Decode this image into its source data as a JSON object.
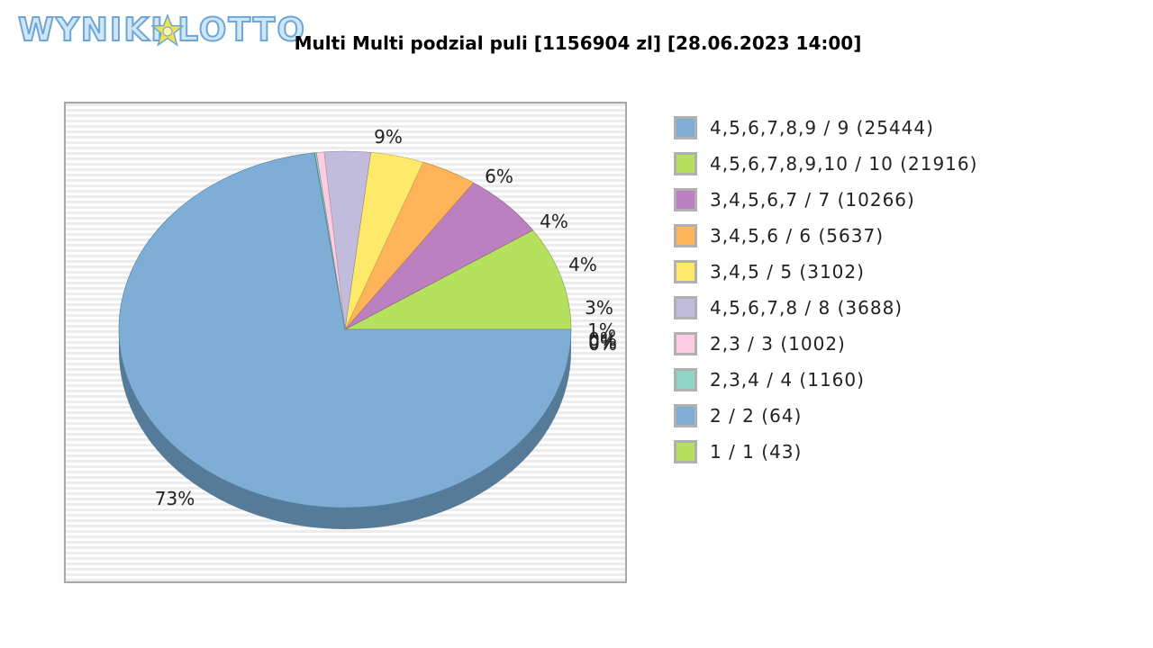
{
  "logo": {
    "text": "WYNIKI LOTTO",
    "colors": {
      "fill": "#cfe6f7",
      "outline": "#6ea6d6",
      "star": "#f3e24a"
    }
  },
  "chart_data": {
    "type": "pie",
    "title": "Multi Multi podzial puli [1156904 zl] [28.06.2023 14:00]",
    "slices": [
      {
        "label": "4,5,6,7,8,9 / 9 (25444)",
        "value": 25444,
        "percent_label": "73%",
        "color": "#7eaed5",
        "shade": "#557b99"
      },
      {
        "label": "4,5,6,7,8,9,10 / 10 (21916)",
        "value": 21916,
        "percent_label": "9%",
        "color": "#b5e15e",
        "shade": "#7fa040"
      },
      {
        "label": "3,4,5,6,7 / 7 (10266)",
        "value": 10266,
        "percent_label": "6%",
        "color": "#bc7fbf",
        "shade": "#855a87"
      },
      {
        "label": "3,4,5,6 / 6 (5637)",
        "value": 5637,
        "percent_label": "4%",
        "color": "#ffb45a",
        "shade": "#b88040"
      },
      {
        "label": "3,4,5 / 5 (3102)",
        "value": 3102,
        "percent_label": "4%",
        "color": "#ffe96a",
        "shade": "#b8a84b"
      },
      {
        "label": "4,5,6,7,8 / 8 (3688)",
        "value": 3688,
        "percent_label": "3%",
        "color": "#c1bbdc",
        "shade": "#8a859e"
      },
      {
        "label": "2,3 / 3 (1002)",
        "value": 1002,
        "percent_label": "1%",
        "color": "#fdcce3",
        "shade": "#b592a2"
      },
      {
        "label": "2,3,4 / 4 (1160)",
        "value": 1160,
        "percent_label": "0%",
        "color": "#8fd6c7",
        "shade": "#67998e"
      },
      {
        "label": "2 / 2 (64)",
        "value": 64,
        "percent_label": "0%",
        "color": "#7eaed5",
        "shade": "#557b99"
      },
      {
        "label": "1 / 1 (43)",
        "value": 43,
        "percent_label": "0%",
        "color": "#b5e15e",
        "shade": "#7fa040"
      }
    ],
    "slice_shares_percent": [
      72.9,
      9.4,
      6.0,
      4.0,
      3.8,
      3.3,
      0.55,
      0.12,
      0.015,
      0.01
    ],
    "legend_position": "right",
    "background": "striped-grey"
  }
}
